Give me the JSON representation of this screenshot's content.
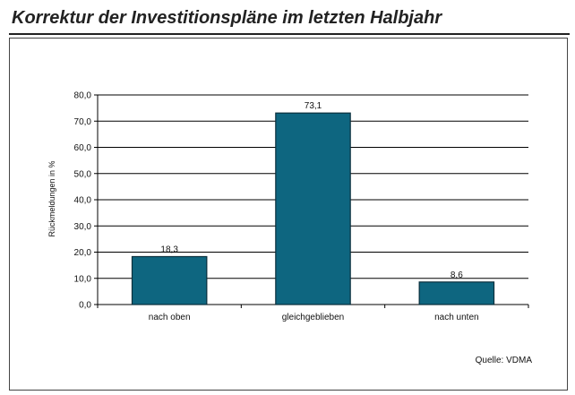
{
  "title": "Korrektur der Investitionspläne im letzten Halbjahr",
  "source": "Quelle: VDMA",
  "colors": {
    "bar": "#0e6680",
    "bar_stroke": "#0a2f3c"
  },
  "chart_data": {
    "type": "bar",
    "title": "",
    "xlabel": "",
    "ylabel": "Rückmeldungen in %",
    "categories": [
      "nach oben",
      "gleichgeblieben",
      "nach unten"
    ],
    "values": [
      18.3,
      73.1,
      8.6
    ],
    "value_labels": [
      "18,3",
      "73,1",
      "8,6"
    ],
    "ylim": [
      0,
      80
    ],
    "yticks": [
      0,
      10,
      20,
      30,
      40,
      50,
      60,
      70,
      80
    ],
    "ytick_labels": [
      "0,0",
      "10,0",
      "20,0",
      "30,0",
      "40,0",
      "50,0",
      "60,0",
      "70,0",
      "80,0"
    ],
    "grid": true,
    "legend": "none"
  }
}
